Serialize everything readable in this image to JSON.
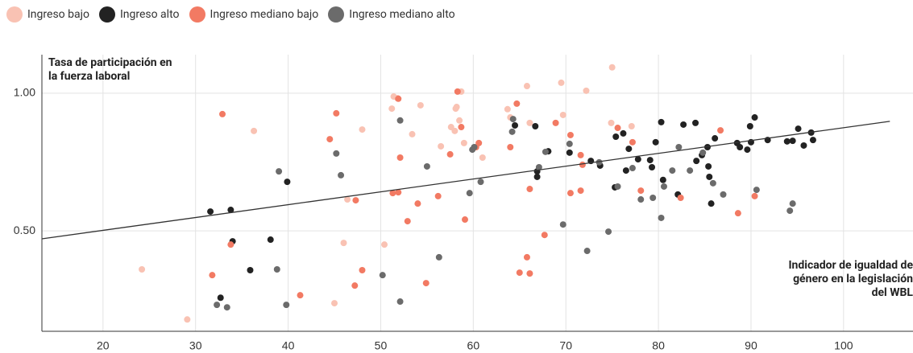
{
  "chart_data": {
    "type": "scatter",
    "y_label": "Tasa de participación en la fuerza laboral",
    "x_label": "Indicador de igualdad de género en la legislación del WBL",
    "xlim": [
      13.4,
      107.5
    ],
    "ylim": [
      0.135,
      1.14
    ],
    "xticks": [
      20,
      30,
      40,
      50,
      60,
      70,
      80,
      90,
      100
    ],
    "yticks": [
      {
        "value": 0.5,
        "label": "0.50"
      },
      {
        "value": 1.0,
        "label": "1.00"
      }
    ],
    "grid": true,
    "trend": {
      "color": "#333333",
      "x": [
        13.4,
        105.0
      ],
      "values": [
        0.471,
        0.898
      ]
    },
    "series": [
      {
        "name": "Ingreso bajo",
        "color": "#f9c2b3",
        "x": [
          24.2,
          29.1,
          36.3,
          48.0,
          46.0,
          45.0,
          50.4,
          51.4,
          51.2,
          51.8,
          54.3,
          53.4,
          56.5,
          57.6,
          58.0,
          58.1,
          58.2,
          58.7,
          58.5,
          61.0,
          63.7,
          64.0,
          65.8,
          66.1,
          69.5,
          69.7,
          72.2,
          75.0,
          74.9,
          77.1,
          46.4,
          59.0
        ],
        "values": [
          0.36,
          0.178,
          0.863,
          0.868,
          0.456,
          0.237,
          0.45,
          0.988,
          0.944,
          0.982,
          0.956,
          0.851,
          0.807,
          0.877,
          0.863,
          0.944,
          0.95,
          1.006,
          0.901,
          0.766,
          0.942,
          0.912,
          1.026,
          0.892,
          1.038,
          0.921,
          1.009,
          1.094,
          0.892,
          0.88,
          0.614,
          0.819
        ]
      },
      {
        "name": "Ingreso alto",
        "color": "#222222",
        "x": [
          31.6,
          32.7,
          33.8,
          34.0,
          35.9,
          38.1,
          39.9,
          64.5,
          66.7,
          66.9,
          66.9,
          68.1,
          70.4,
          72.7,
          73.7,
          75.4,
          75.3,
          76.2,
          76.5,
          76.8,
          77.8,
          79.1,
          79.3,
          79.7,
          80.3,
          80.5,
          82.1,
          82.7,
          84.0,
          84.1,
          84.7,
          85.3,
          85.4,
          85.5,
          85.7,
          86.1,
          88.8,
          88.5,
          89.6,
          90.0,
          89.9,
          90.4,
          91.8,
          93.9,
          94.5,
          95.1,
          95.7,
          96.5,
          96.7
        ],
        "values": [
          0.57,
          0.257,
          0.576,
          0.462,
          0.357,
          0.468,
          0.678,
          0.883,
          0.88,
          0.716,
          0.696,
          0.789,
          0.784,
          0.754,
          0.737,
          0.842,
          0.658,
          0.854,
          0.719,
          0.798,
          0.76,
          0.757,
          0.731,
          0.822,
          0.895,
          0.685,
          0.632,
          0.886,
          0.892,
          0.754,
          0.775,
          0.804,
          0.734,
          0.696,
          0.599,
          0.836,
          0.804,
          0.819,
          0.795,
          0.822,
          0.88,
          0.912,
          0.83,
          0.825,
          0.827,
          0.871,
          0.81,
          0.857,
          0.83
        ]
      },
      {
        "name": "Ingreso mediano bajo",
        "color": "#f27a63",
        "x": [
          31.8,
          32.9,
          33.8,
          41.3,
          44.5,
          45.2,
          47.3,
          48.0,
          47.2,
          51.3,
          51.9,
          52.1,
          51.9,
          52.9,
          54.0,
          54.9,
          56.2,
          57.5,
          58.3,
          58.7,
          59.1,
          60.3,
          60.6,
          64.0,
          64.7,
          65.0,
          65.8,
          66.1,
          66.1,
          67.7,
          68.9,
          70.5,
          70.5,
          71.6,
          71.8,
          71.6,
          75.6,
          77.2,
          78.1,
          82.4,
          86.7,
          88.6,
          90.4
        ],
        "values": [
          0.339,
          0.924,
          0.45,
          0.266,
          0.833,
          0.927,
          0.611,
          0.357,
          0.301,
          0.637,
          0.64,
          0.766,
          0.98,
          0.535,
          0.599,
          0.31,
          0.626,
          0.778,
          1.006,
          0.877,
          0.541,
          0.804,
          0.819,
          0.804,
          0.962,
          0.348,
          0.404,
          0.345,
          0.652,
          0.485,
          0.892,
          0.848,
          0.637,
          0.775,
          0.74,
          0.646,
          0.874,
          0.822,
          0.646,
          0.62,
          0.865,
          0.564,
          0.626
        ]
      },
      {
        "name": "Ingreso mediano alto",
        "color": "#6b6b6b",
        "x": [
          32.3,
          33.4,
          39.0,
          38.8,
          39.8,
          45.2,
          45.7,
          50.2,
          52.1,
          52.1,
          55.0,
          56.3,
          59.6,
          59.9,
          60.1,
          60.8,
          64.3,
          64.2,
          67.1,
          67.8,
          69.7,
          70.4,
          72.3,
          73.6,
          74.6,
          75.6,
          77.2,
          78.1,
          79.4,
          80.3,
          80.6,
          81.5,
          82.2,
          83.4,
          84.8,
          85.9,
          87.0,
          90.6,
          94.2,
          94.5
        ],
        "values": [
          0.231,
          0.222,
          0.716,
          0.36,
          0.231,
          0.781,
          0.702,
          0.339,
          0.901,
          0.243,
          0.734,
          0.404,
          0.637,
          0.795,
          0.804,
          0.678,
          0.906,
          0.86,
          0.731,
          0.787,
          0.523,
          0.816,
          0.427,
          0.749,
          0.497,
          0.661,
          0.728,
          0.614,
          0.62,
          0.547,
          0.661,
          0.719,
          0.804,
          0.719,
          0.784,
          0.673,
          0.632,
          0.649,
          0.573,
          0.599
        ]
      }
    ]
  }
}
